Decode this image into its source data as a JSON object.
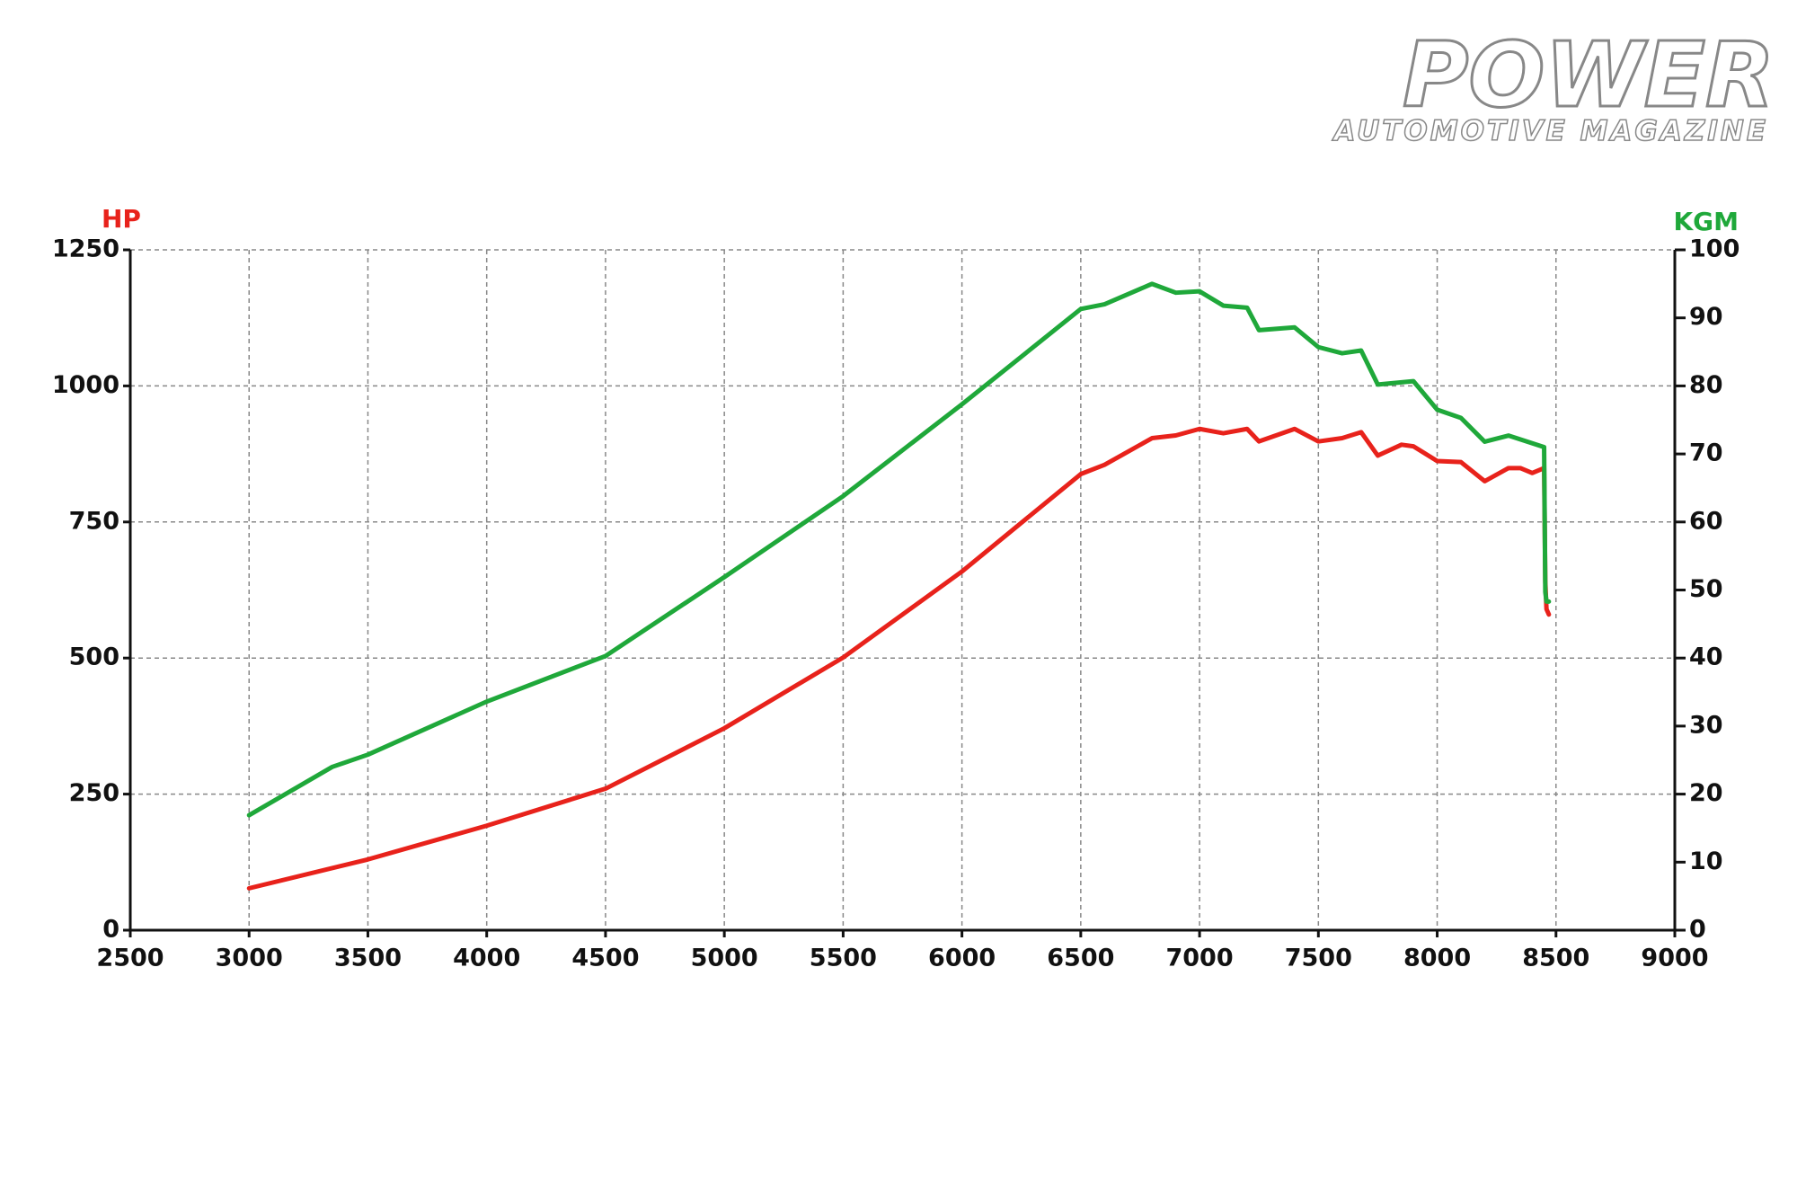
{
  "logo": {
    "title": "POWER",
    "subtitle": "AUTOMOTIVE MAGAZINE"
  },
  "chart_data": {
    "type": "line",
    "y_label": "HP",
    "y2_label": "KGM",
    "xlim": [
      2500,
      9000
    ],
    "xticks": [
      2500,
      3000,
      3500,
      4000,
      4500,
      5000,
      5500,
      6000,
      6500,
      7000,
      7500,
      8000,
      8500,
      9000
    ],
    "ylim": [
      0,
      1250
    ],
    "yticks": [
      0,
      250,
      500,
      750,
      1000,
      1250
    ],
    "y2lim": [
      0,
      100
    ],
    "y2ticks": [
      0,
      10,
      20,
      30,
      40,
      50,
      60,
      70,
      80,
      90,
      100
    ],
    "grid": true,
    "series": [
      {
        "name": "HP",
        "color": "#e8221b",
        "axis": "y",
        "x": [
          3000,
          3500,
          4000,
          4500,
          5000,
          5500,
          6000,
          6500,
          6600,
          6800,
          6900,
          7000,
          7100,
          7200,
          7250,
          7400,
          7500,
          7600,
          7680,
          7750,
          7850,
          7900,
          8000,
          8100,
          8200,
          8300,
          8350,
          8400,
          8450,
          8455,
          8460,
          8470
        ],
        "values": [
          77,
          130,
          192,
          260,
          371,
          501,
          659,
          838,
          855,
          904,
          909,
          921,
          913,
          921,
          898,
          921,
          898,
          904,
          915,
          872,
          892,
          889,
          862,
          860,
          825,
          849,
          849,
          840,
          849,
          640,
          590,
          580
        ]
      },
      {
        "name": "KGM",
        "color": "#1fa83a",
        "axis": "y2",
        "x": [
          3000,
          3350,
          3500,
          4000,
          4500,
          5000,
          5500,
          6000,
          6500,
          6600,
          6800,
          6900,
          7000,
          7100,
          7200,
          7250,
          7400,
          7500,
          7600,
          7680,
          7750,
          7900,
          8000,
          8100,
          8200,
          8300,
          8450,
          8455,
          8460,
          8470
        ],
        "values": [
          16.9,
          24,
          25.8,
          33.6,
          40.3,
          51.9,
          63.8,
          77.3,
          91.3,
          92,
          95,
          93.7,
          93.9,
          91.8,
          91.5,
          88.2,
          88.6,
          85.7,
          84.8,
          85.2,
          80.2,
          80.7,
          76.5,
          75.3,
          71.8,
          72.7,
          71,
          49.7,
          48.3,
          48.3
        ]
      }
    ]
  }
}
